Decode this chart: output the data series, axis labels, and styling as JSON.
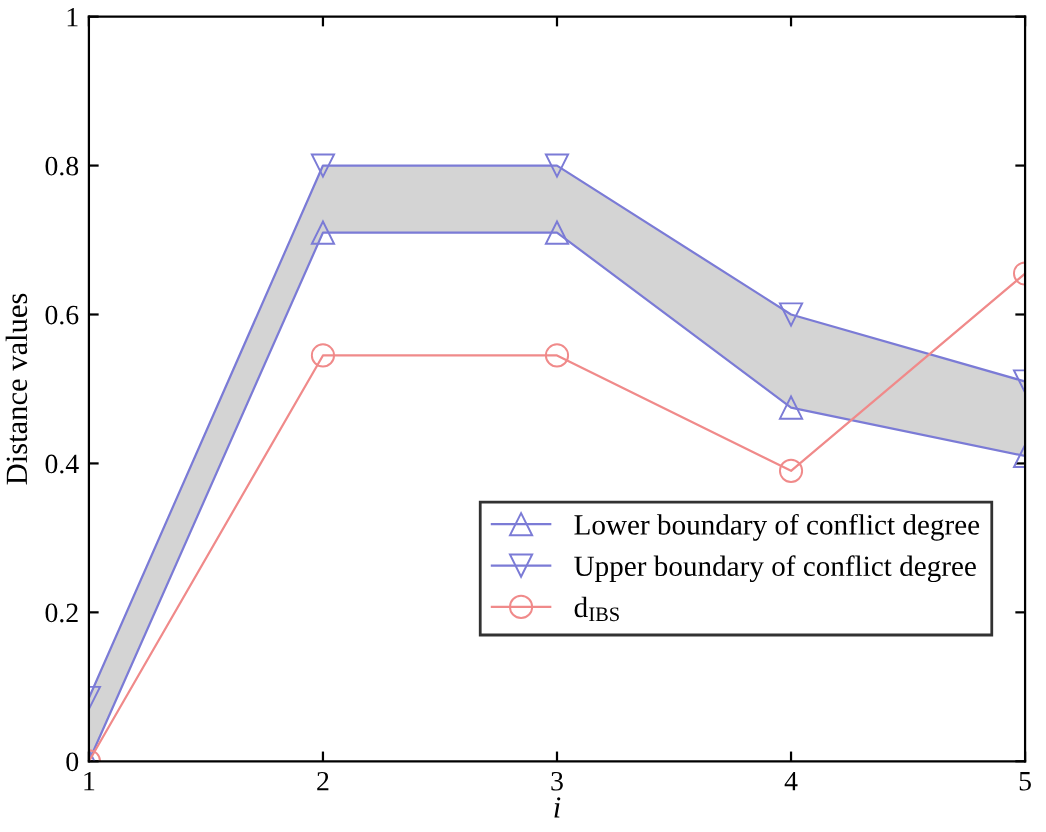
{
  "chart_data": {
    "type": "line",
    "xlabel": "i",
    "ylabel": "Distance values",
    "x": [
      1,
      2,
      3,
      4,
      5
    ],
    "series": [
      {
        "name": "Lower boundary of conflict degree",
        "color": "#7b7bd6",
        "marker": "triangle",
        "values": [
          0,
          0.71,
          0.71,
          0.475,
          0.41
        ]
      },
      {
        "name": "Upper boundary of conflict degree",
        "color": "#7b7bd6",
        "marker": "triangle_down",
        "values": [
          0.085,
          0.8,
          0.8,
          0.6,
          0.51
        ],
        "lower": [
          0,
          0.71,
          0.71,
          0.475,
          0.41
        ],
        "upper": [
          0.085,
          0.8,
          0.8,
          0.6,
          0.51
        ]
      },
      {
        "name": "d$_{IBS}$",
        "color": "#f08a8a",
        "marker": "circle",
        "values": [
          0,
          0.545,
          0.545,
          0.39,
          0.655
        ]
      }
    ],
    "xlim": [
      1,
      5
    ],
    "xticks": [
      1,
      2,
      3,
      4,
      5
    ],
    "ylim": [
      0,
      1
    ],
    "yticks": [
      0,
      0.2,
      0.4,
      0.6,
      0.8,
      1
    ],
    "grid": false,
    "legend": "bottom right",
    "line_style": "solid"
  }
}
